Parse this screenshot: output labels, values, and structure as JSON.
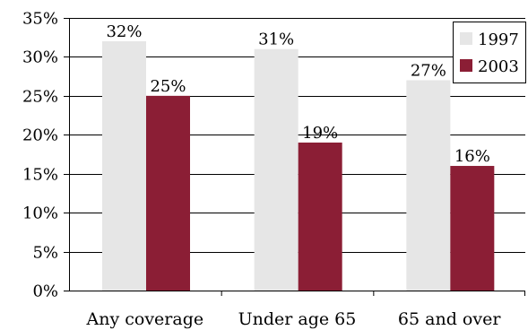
{
  "chart_data": {
    "type": "bar",
    "title": "",
    "xlabel": "",
    "ylabel": "",
    "categories": [
      "Any coverage",
      "Under age 65",
      "65 and over"
    ],
    "series": [
      {
        "name": "1997",
        "values": [
          32,
          31,
          27
        ],
        "labels": [
          "32%",
          "31%",
          "27%"
        ],
        "color": "#e6e6e6"
      },
      {
        "name": "2003",
        "values": [
          25,
          19,
          16
        ],
        "labels": [
          "25%",
          "19%",
          "16%"
        ],
        "color": "#8b1e35"
      }
    ],
    "ylim": [
      0,
      35
    ],
    "yticks": [
      0,
      5,
      10,
      15,
      20,
      25,
      30,
      35
    ],
    "ytick_labels": [
      "0%",
      "5%",
      "10%",
      "15%",
      "20%",
      "25%",
      "30%",
      "35%"
    ],
    "grid": true,
    "legend_position": "top-right"
  }
}
